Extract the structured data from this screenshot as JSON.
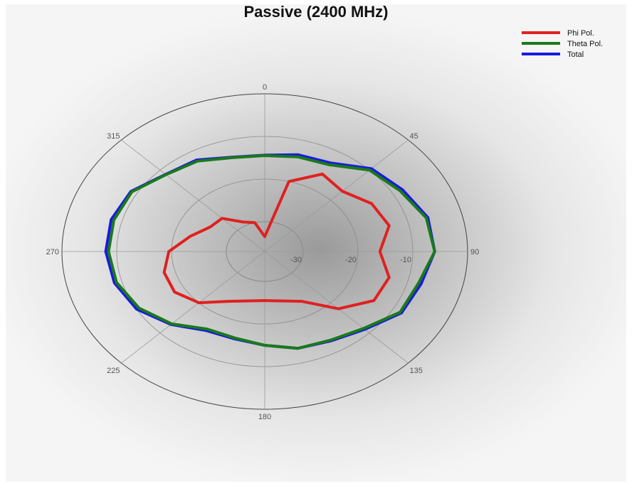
{
  "chart_data": {
    "type": "polar",
    "title": "Passive (2400 MHz)",
    "angle_ticks": [
      "0",
      "45",
      "90",
      "135",
      "180",
      "225",
      "270",
      "315"
    ],
    "radial_ticks": [
      {
        "value": -30,
        "label": "-30"
      },
      {
        "value": -20,
        "label": "-20"
      },
      {
        "value": -10,
        "label": "-10"
      }
    ],
    "rlim": [
      -37,
      0
    ],
    "angles": [
      0,
      15,
      30,
      45,
      60,
      75,
      90,
      105,
      120,
      135,
      150,
      165,
      180,
      195,
      210,
      225,
      240,
      255,
      270,
      285,
      300,
      315,
      330,
      345
    ],
    "series": [
      {
        "name": "Phi Pol.",
        "color": "#e02020",
        "values": [
          -33.5,
          -20,
          -16,
          -17,
          -14.5,
          -13.5,
          -16,
          -13.5,
          -14,
          -18,
          -23.5,
          -25,
          -25.5,
          -25,
          -23.5,
          -20,
          -18,
          -18,
          -19.5,
          -23,
          -25.5,
          -26,
          -29,
          -30
        ]
      },
      {
        "name": "Theta Pol.",
        "color": "#1a7a1a",
        "values": [
          -14.5,
          -14,
          -13.5,
          -10,
          -8.5,
          -6.5,
          -6,
          -8,
          -8.5,
          -11.5,
          -13,
          -13.5,
          -15,
          -16,
          -16,
          -13,
          -10.5,
          -9,
          -8.5,
          -8.5,
          -9,
          -11.5,
          -12.5,
          -14.2
        ]
      },
      {
        "name": "Total",
        "color": "#1a1ae0",
        "values": [
          -14.4,
          -13.5,
          -13,
          -9.5,
          -8,
          -6.2,
          -6,
          -7.5,
          -8.2,
          -11.2,
          -12.8,
          -13.5,
          -15,
          -15.8,
          -15.6,
          -12.8,
          -10,
          -8.6,
          -8,
          -8,
          -8.8,
          -11.4,
          -12.2,
          -14.1
        ]
      }
    ],
    "legend_position": "top-right",
    "grid": true
  }
}
